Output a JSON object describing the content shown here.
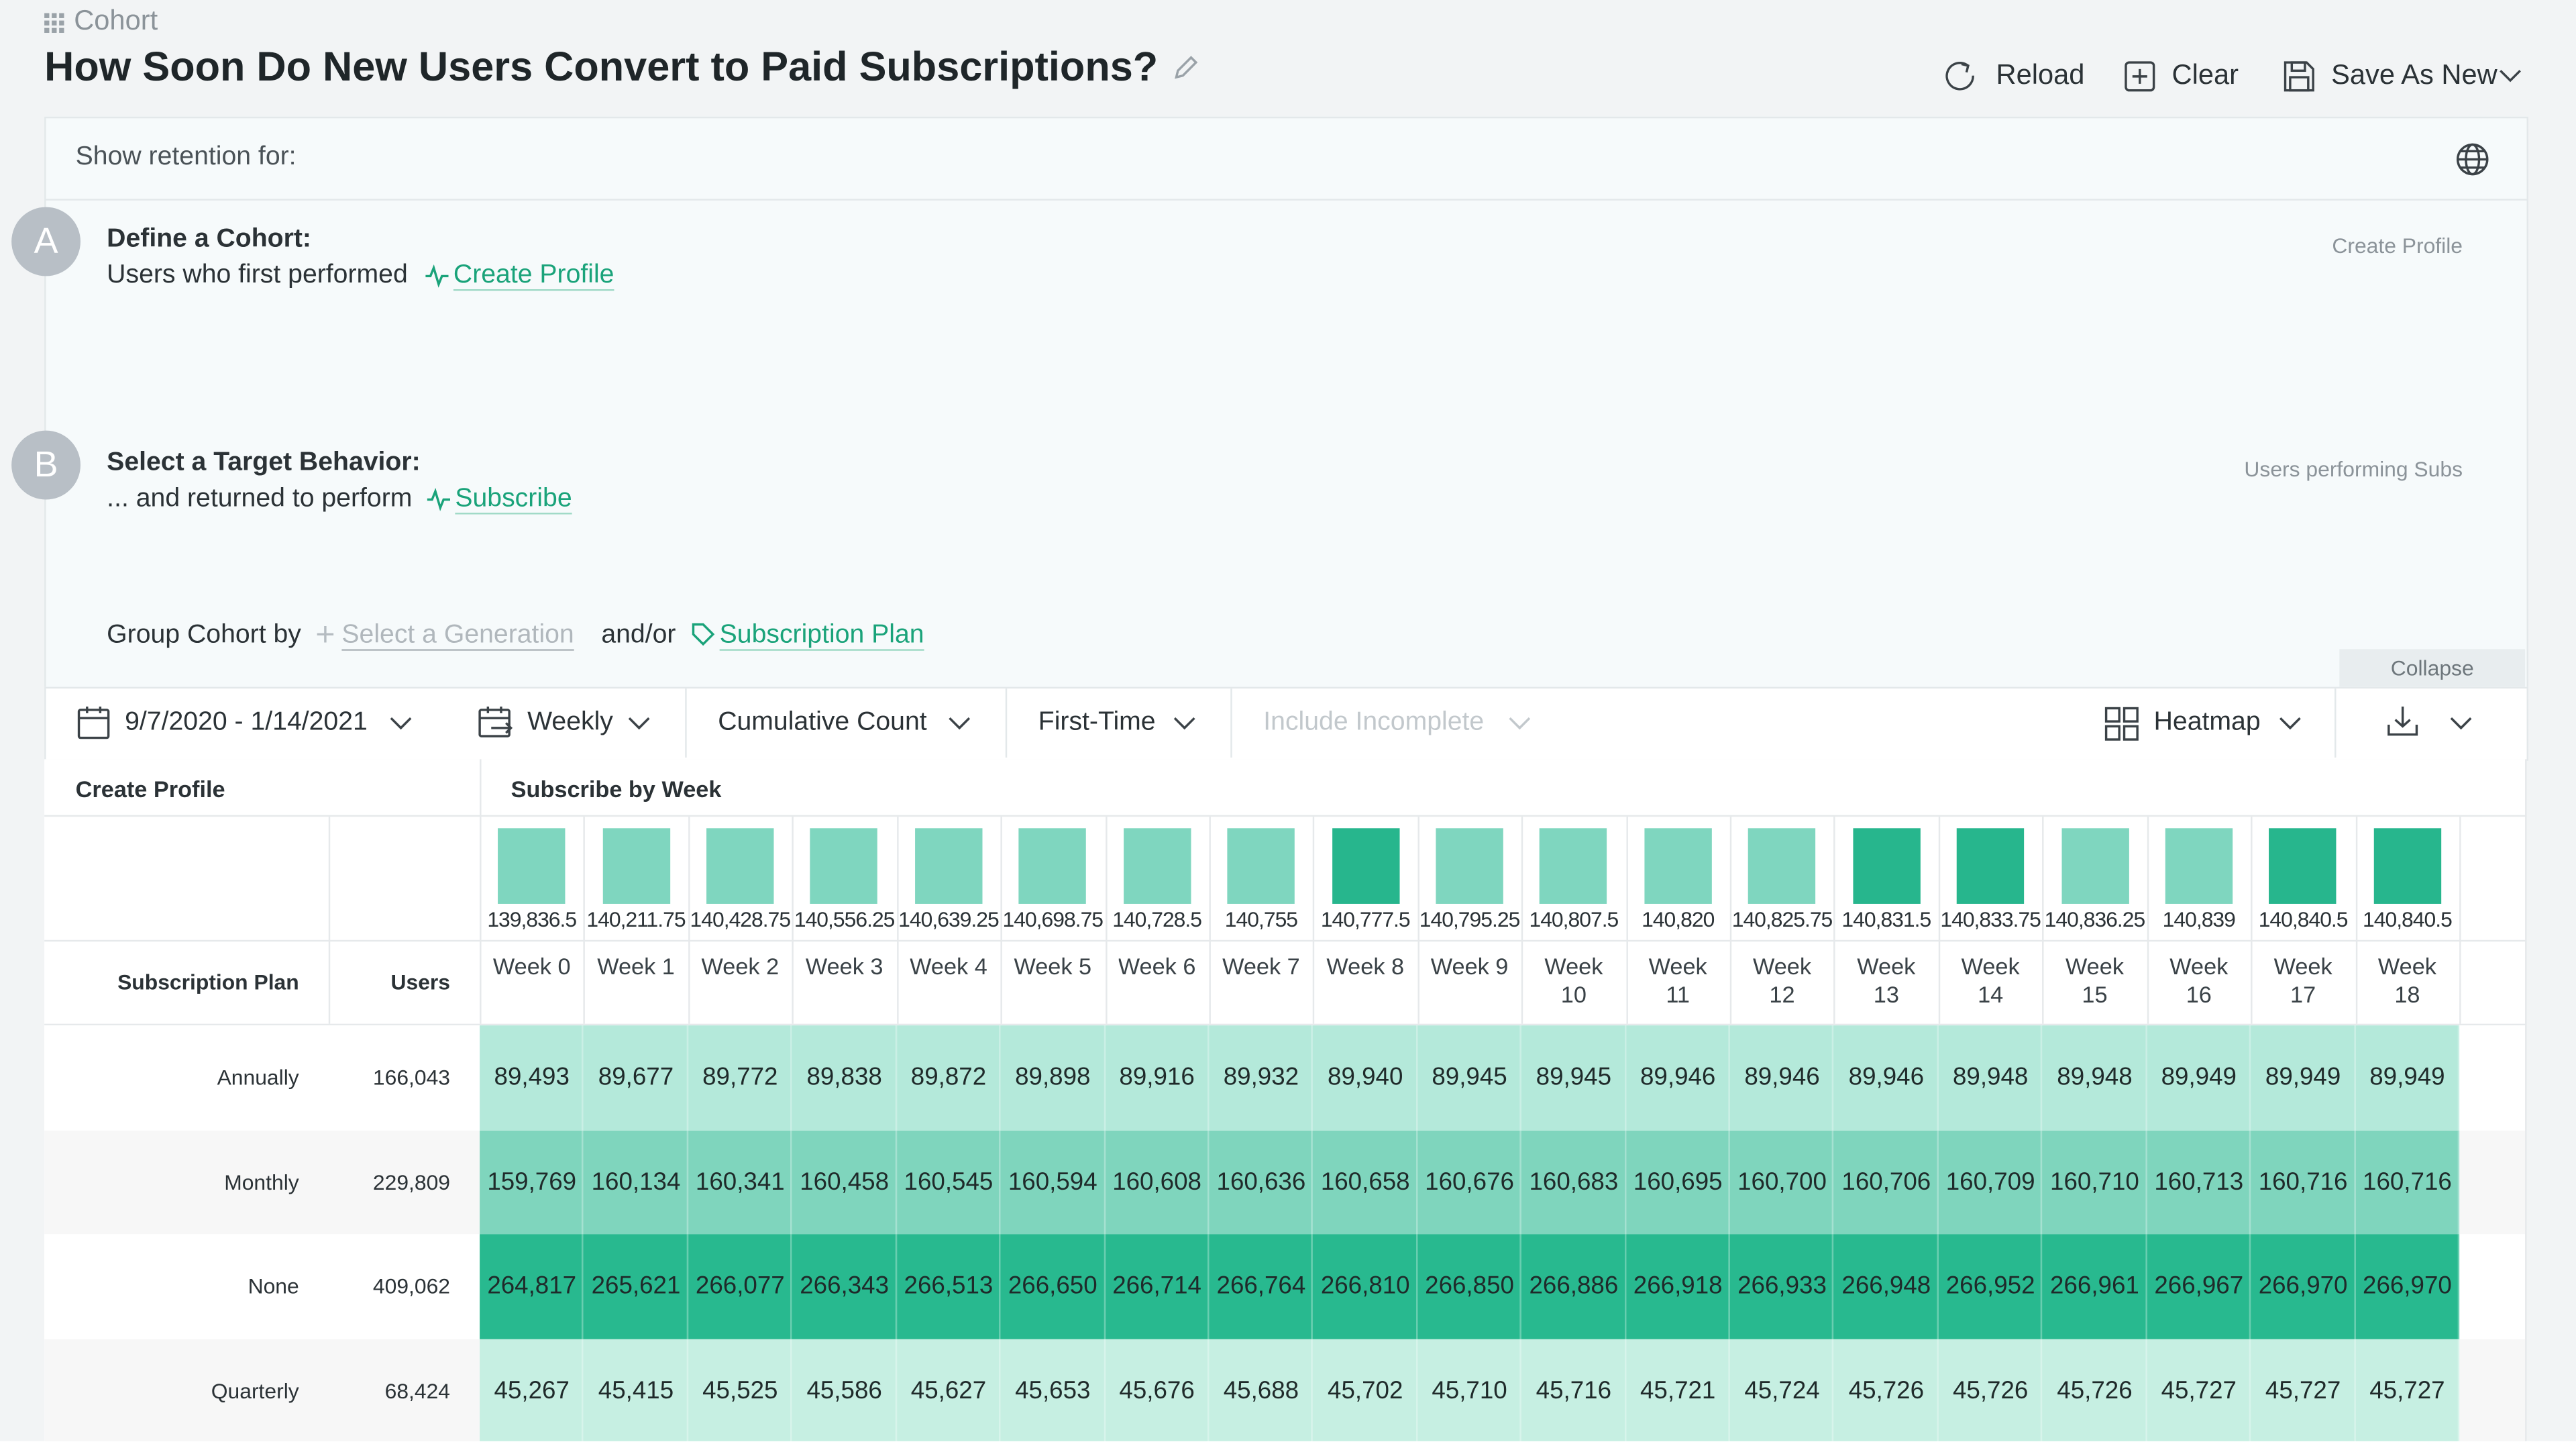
{
  "header": {
    "breadcrumb": "Cohort",
    "title": "How Soon Do New Users Convert to Paid Subscriptions?",
    "actions": [
      "Reload",
      "Clear",
      "Save As New"
    ]
  },
  "query": {
    "show_retention_for": "Show retention for:",
    "cohort": {
      "badge": "A",
      "heading": "Define a Cohort:",
      "text": "Users who first performed",
      "event": "Create Profile",
      "side_label": "Create Profile"
    },
    "target": {
      "badge": "B",
      "heading": "Select a Target Behavior:",
      "text": "... and returned to perform",
      "event": "Subscribe",
      "side_label": "Users performing Subs"
    },
    "group": {
      "label": "Group Cohort by",
      "placeholder": "Select a Generation",
      "joiner": "and/or",
      "property": "Subscription Plan"
    },
    "collapse": "Collapse"
  },
  "toolbar": {
    "date_range": "9/7/2020 - 1/14/2021",
    "interval": "Weekly",
    "measure": "Cumulative Count",
    "mode": "First-Time",
    "incomplete": "Include Incomplete",
    "view": "Heatmap"
  },
  "table": {
    "left_header": "Create Profile",
    "right_header": "Subscribe by Week",
    "summary": [
      {
        "value": "139,836.5",
        "color": "#7fd6bf"
      },
      {
        "value": "140,211.75",
        "color": "#7fd6bf"
      },
      {
        "value": "140,428.75",
        "color": "#7fd6bf"
      },
      {
        "value": "140,556.25",
        "color": "#7fd6bf"
      },
      {
        "value": "140,639.25",
        "color": "#7fd6bf"
      },
      {
        "value": "140,698.75",
        "color": "#7fd6bf"
      },
      {
        "value": "140,728.5",
        "color": "#7fd6bf"
      },
      {
        "value": "140,755",
        "color": "#7fd6bf"
      },
      {
        "value": "140,777.5",
        "color": "#27b68d"
      },
      {
        "value": "140,795.25",
        "color": "#7fd6bf"
      },
      {
        "value": "140,807.5",
        "color": "#7fd6bf"
      },
      {
        "value": "140,820",
        "color": "#7fd6bf"
      },
      {
        "value": "140,825.75",
        "color": "#7fd6bf"
      },
      {
        "value": "140,831.5",
        "color": "#27b68d"
      },
      {
        "value": "140,833.75",
        "color": "#27b68d"
      },
      {
        "value": "140,836.25",
        "color": "#7fd6bf"
      },
      {
        "value": "140,839",
        "color": "#7fd6bf"
      },
      {
        "value": "140,840.5",
        "color": "#27b68d"
      },
      {
        "value": "140,840.5",
        "color": "#27b68d"
      }
    ],
    "group_header": "Subscription Plan",
    "users_header": "Users",
    "weeks": [
      "Week 0",
      "Week 1",
      "Week 2",
      "Week 3",
      "Week 4",
      "Week 5",
      "Week 6",
      "Week 7",
      "Week 8",
      "Week 9",
      "Week 10",
      "Week 11",
      "Week 12",
      "Week 13",
      "Week 14",
      "Week 15",
      "Week 16",
      "Week 17",
      "Week 18"
    ],
    "rows": [
      {
        "label": "Annually",
        "users": "166,043",
        "color": "#b4e9da",
        "cells": [
          "89,493",
          "89,677",
          "89,772",
          "89,838",
          "89,872",
          "89,898",
          "89,916",
          "89,932",
          "89,940",
          "89,945",
          "89,945",
          "89,946",
          "89,946",
          "89,946",
          "89,948",
          "89,948",
          "89,949",
          "89,949",
          "89,949"
        ]
      },
      {
        "label": "Monthly",
        "users": "229,809",
        "color": "#7fd5bd",
        "cells": [
          "159,769",
          "160,134",
          "160,341",
          "160,458",
          "160,545",
          "160,594",
          "160,608",
          "160,636",
          "160,658",
          "160,676",
          "160,683",
          "160,695",
          "160,700",
          "160,706",
          "160,709",
          "160,710",
          "160,713",
          "160,716",
          "160,716"
        ]
      },
      {
        "label": "None",
        "users": "409,062",
        "color": "#28b98f",
        "cells": [
          "264,817",
          "265,621",
          "266,077",
          "266,343",
          "266,513",
          "266,650",
          "266,714",
          "266,764",
          "266,810",
          "266,850",
          "266,886",
          "266,918",
          "266,933",
          "266,948",
          "266,952",
          "266,961",
          "266,967",
          "266,970",
          "266,970"
        ]
      },
      {
        "label": "Quarterly",
        "users": "68,424",
        "color": "#c6efe2",
        "cells": [
          "45,267",
          "45,415",
          "45,525",
          "45,586",
          "45,627",
          "45,653",
          "45,676",
          "45,688",
          "45,702",
          "45,710",
          "45,716",
          "45,721",
          "45,724",
          "45,726",
          "45,726",
          "45,726",
          "45,727",
          "45,727",
          "45,727"
        ]
      }
    ]
  }
}
